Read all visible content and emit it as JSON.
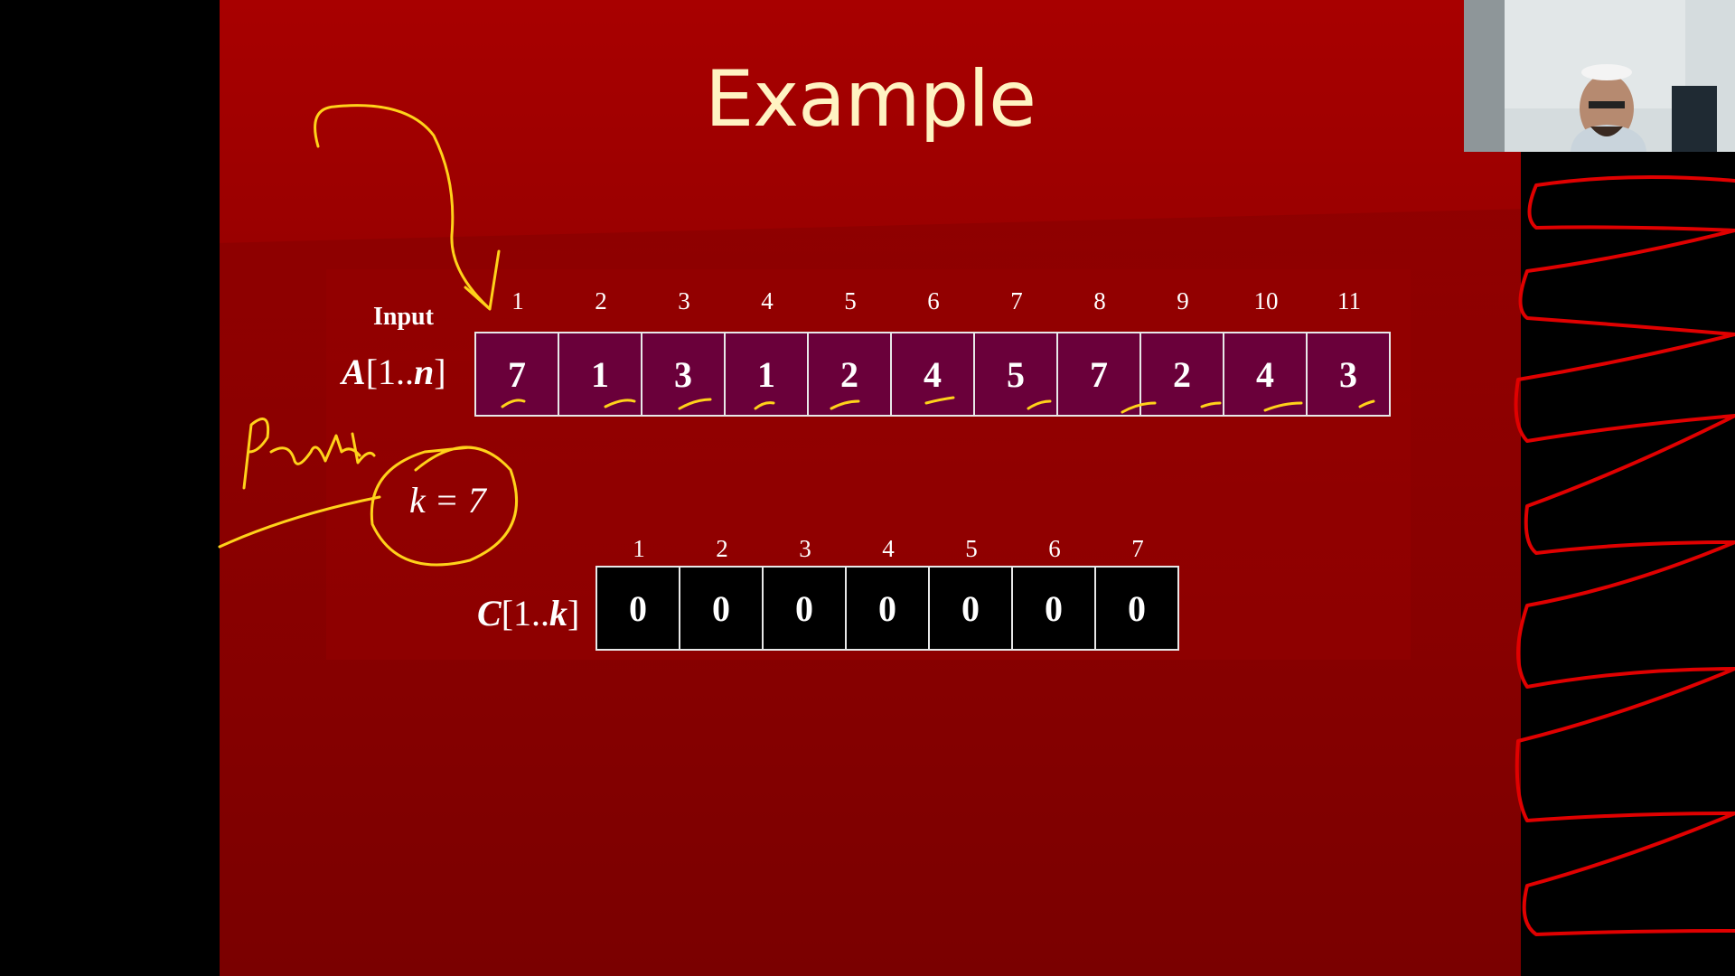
{
  "slide": {
    "title": "Example",
    "input_label": "Input",
    "array_a": {
      "label": "A[1..n]",
      "indices": [
        "1",
        "2",
        "3",
        "4",
        "5",
        "6",
        "7",
        "8",
        "9",
        "10",
        "11"
      ],
      "values": [
        "7",
        "1",
        "3",
        "1",
        "2",
        "4",
        "5",
        "7",
        "2",
        "4",
        "3"
      ]
    },
    "k_label": "k = 7",
    "array_c": {
      "label": "C[1..k]",
      "indices": [
        "1",
        "2",
        "3",
        "4",
        "5",
        "6",
        "7"
      ],
      "values": [
        "0",
        "0",
        "0",
        "0",
        "0",
        "0",
        "0"
      ]
    }
  },
  "annotations": {
    "handwritten_text": "Rank",
    "ink_yellow": "#ffd21a",
    "ink_red": "#e00000"
  },
  "colors": {
    "slide_background": "#9a0000",
    "title_color": "#fff3c2",
    "array_a_cell": "#6a003a",
    "array_c_cell": "#000000"
  },
  "webcam": {
    "content": "presenter-video"
  }
}
